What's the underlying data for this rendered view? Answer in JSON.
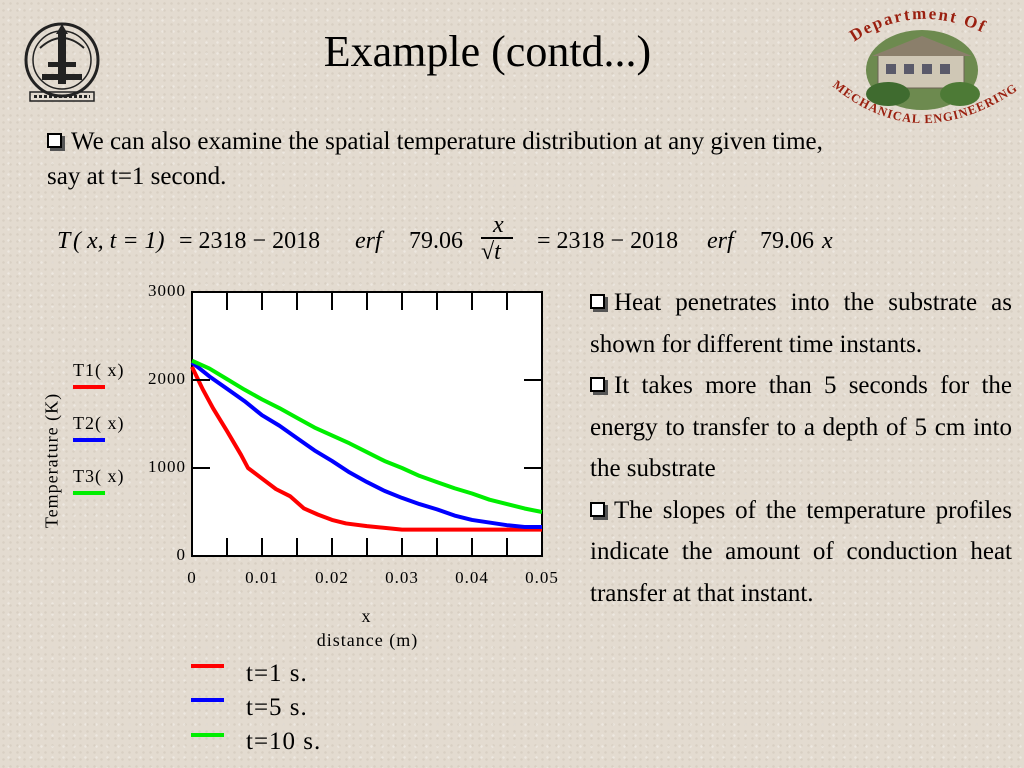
{
  "slide": {
    "title": "Example (contd...)",
    "intro": "We can also examine the spatial temperature distribution at any given time, say at t=1 second.",
    "equation": {
      "lhs_T": "T",
      "lhs_args": "( x, t = 1)",
      "eq1": "= 2318 − 2018",
      "erf1": "erf",
      "coef1": "79.06",
      "frac_num": "x",
      "frac_den": "√t",
      "eq2": "= 2318 − 2018",
      "erf2": "erf",
      "coef2": "79.06",
      "var2": "x"
    },
    "bullets": [
      "Heat penetrates into the substrate as shown for different time instants.",
      "It takes more than 5 seconds for the energy to transfer to a depth of 5 cm into the substrate",
      "The slopes of the temperature profiles indicate the amount of conduction heat transfer at that instant."
    ],
    "logo_right_text": {
      "top": "Department Of",
      "bottom": "MECHANICAL ENGINEERING"
    },
    "bottom_legend": [
      "t=1 s.",
      "t=5 s.",
      "t=10 s."
    ],
    "colors": {
      "red": "#ff0000",
      "blue": "#0000ff",
      "green": "#00ee00"
    }
  },
  "chart_data": {
    "type": "line",
    "ylabel": "Temperature (K)",
    "xlabel": "x",
    "xlabel2": "distance (m)",
    "xlim": [
      0,
      0.05
    ],
    "ylim": [
      0,
      3000
    ],
    "x_ticks": [
      "0",
      "0.01",
      "0.02",
      "0.03",
      "0.04",
      "0.05"
    ],
    "y_ticks": [
      "3000",
      "2000",
      "1000",
      "0"
    ],
    "y_tick_values": [
      3000,
      2000,
      1000,
      0
    ],
    "x_tick_values": [
      0,
      0.01,
      0.02,
      0.03,
      0.04,
      0.05
    ],
    "series": [
      {
        "name": "T1( x)",
        "color": "#ff0000",
        "x": [
          0,
          0.0015,
          0.003,
          0.005,
          0.007,
          0.008,
          0.01,
          0.012,
          0.014,
          0.016,
          0.018,
          0.02,
          0.022,
          0.025,
          0.03,
          0.035,
          0.04,
          0.045,
          0.05
        ],
        "y": [
          2150,
          1900,
          1680,
          1420,
          1150,
          1000,
          880,
          760,
          680,
          540,
          470,
          410,
          370,
          340,
          300,
          300,
          300,
          300,
          300
        ]
      },
      {
        "name": "T2( x)",
        "color": "#0000ff",
        "x": [
          0,
          0.0025,
          0.005,
          0.0075,
          0.01,
          0.0125,
          0.015,
          0.0175,
          0.02,
          0.0225,
          0.025,
          0.0275,
          0.03,
          0.0325,
          0.035,
          0.0375,
          0.04,
          0.0425,
          0.045,
          0.0475,
          0.05
        ],
        "y": [
          2200,
          2040,
          1900,
          1760,
          1600,
          1480,
          1340,
          1200,
          1080,
          950,
          840,
          740,
          660,
          590,
          530,
          460,
          410,
          380,
          350,
          330,
          330
        ]
      },
      {
        "name": "T3( x)",
        "color": "#00ee00",
        "x": [
          0,
          0.0025,
          0.005,
          0.0075,
          0.01,
          0.0125,
          0.015,
          0.0175,
          0.02,
          0.0225,
          0.025,
          0.0275,
          0.03,
          0.0325,
          0.035,
          0.0375,
          0.04,
          0.0425,
          0.045,
          0.0475,
          0.05
        ],
        "y": [
          2220,
          2130,
          2010,
          1890,
          1780,
          1680,
          1570,
          1460,
          1370,
          1280,
          1180,
          1080,
          1000,
          910,
          840,
          770,
          710,
          640,
          590,
          540,
          500
        ]
      }
    ]
  }
}
